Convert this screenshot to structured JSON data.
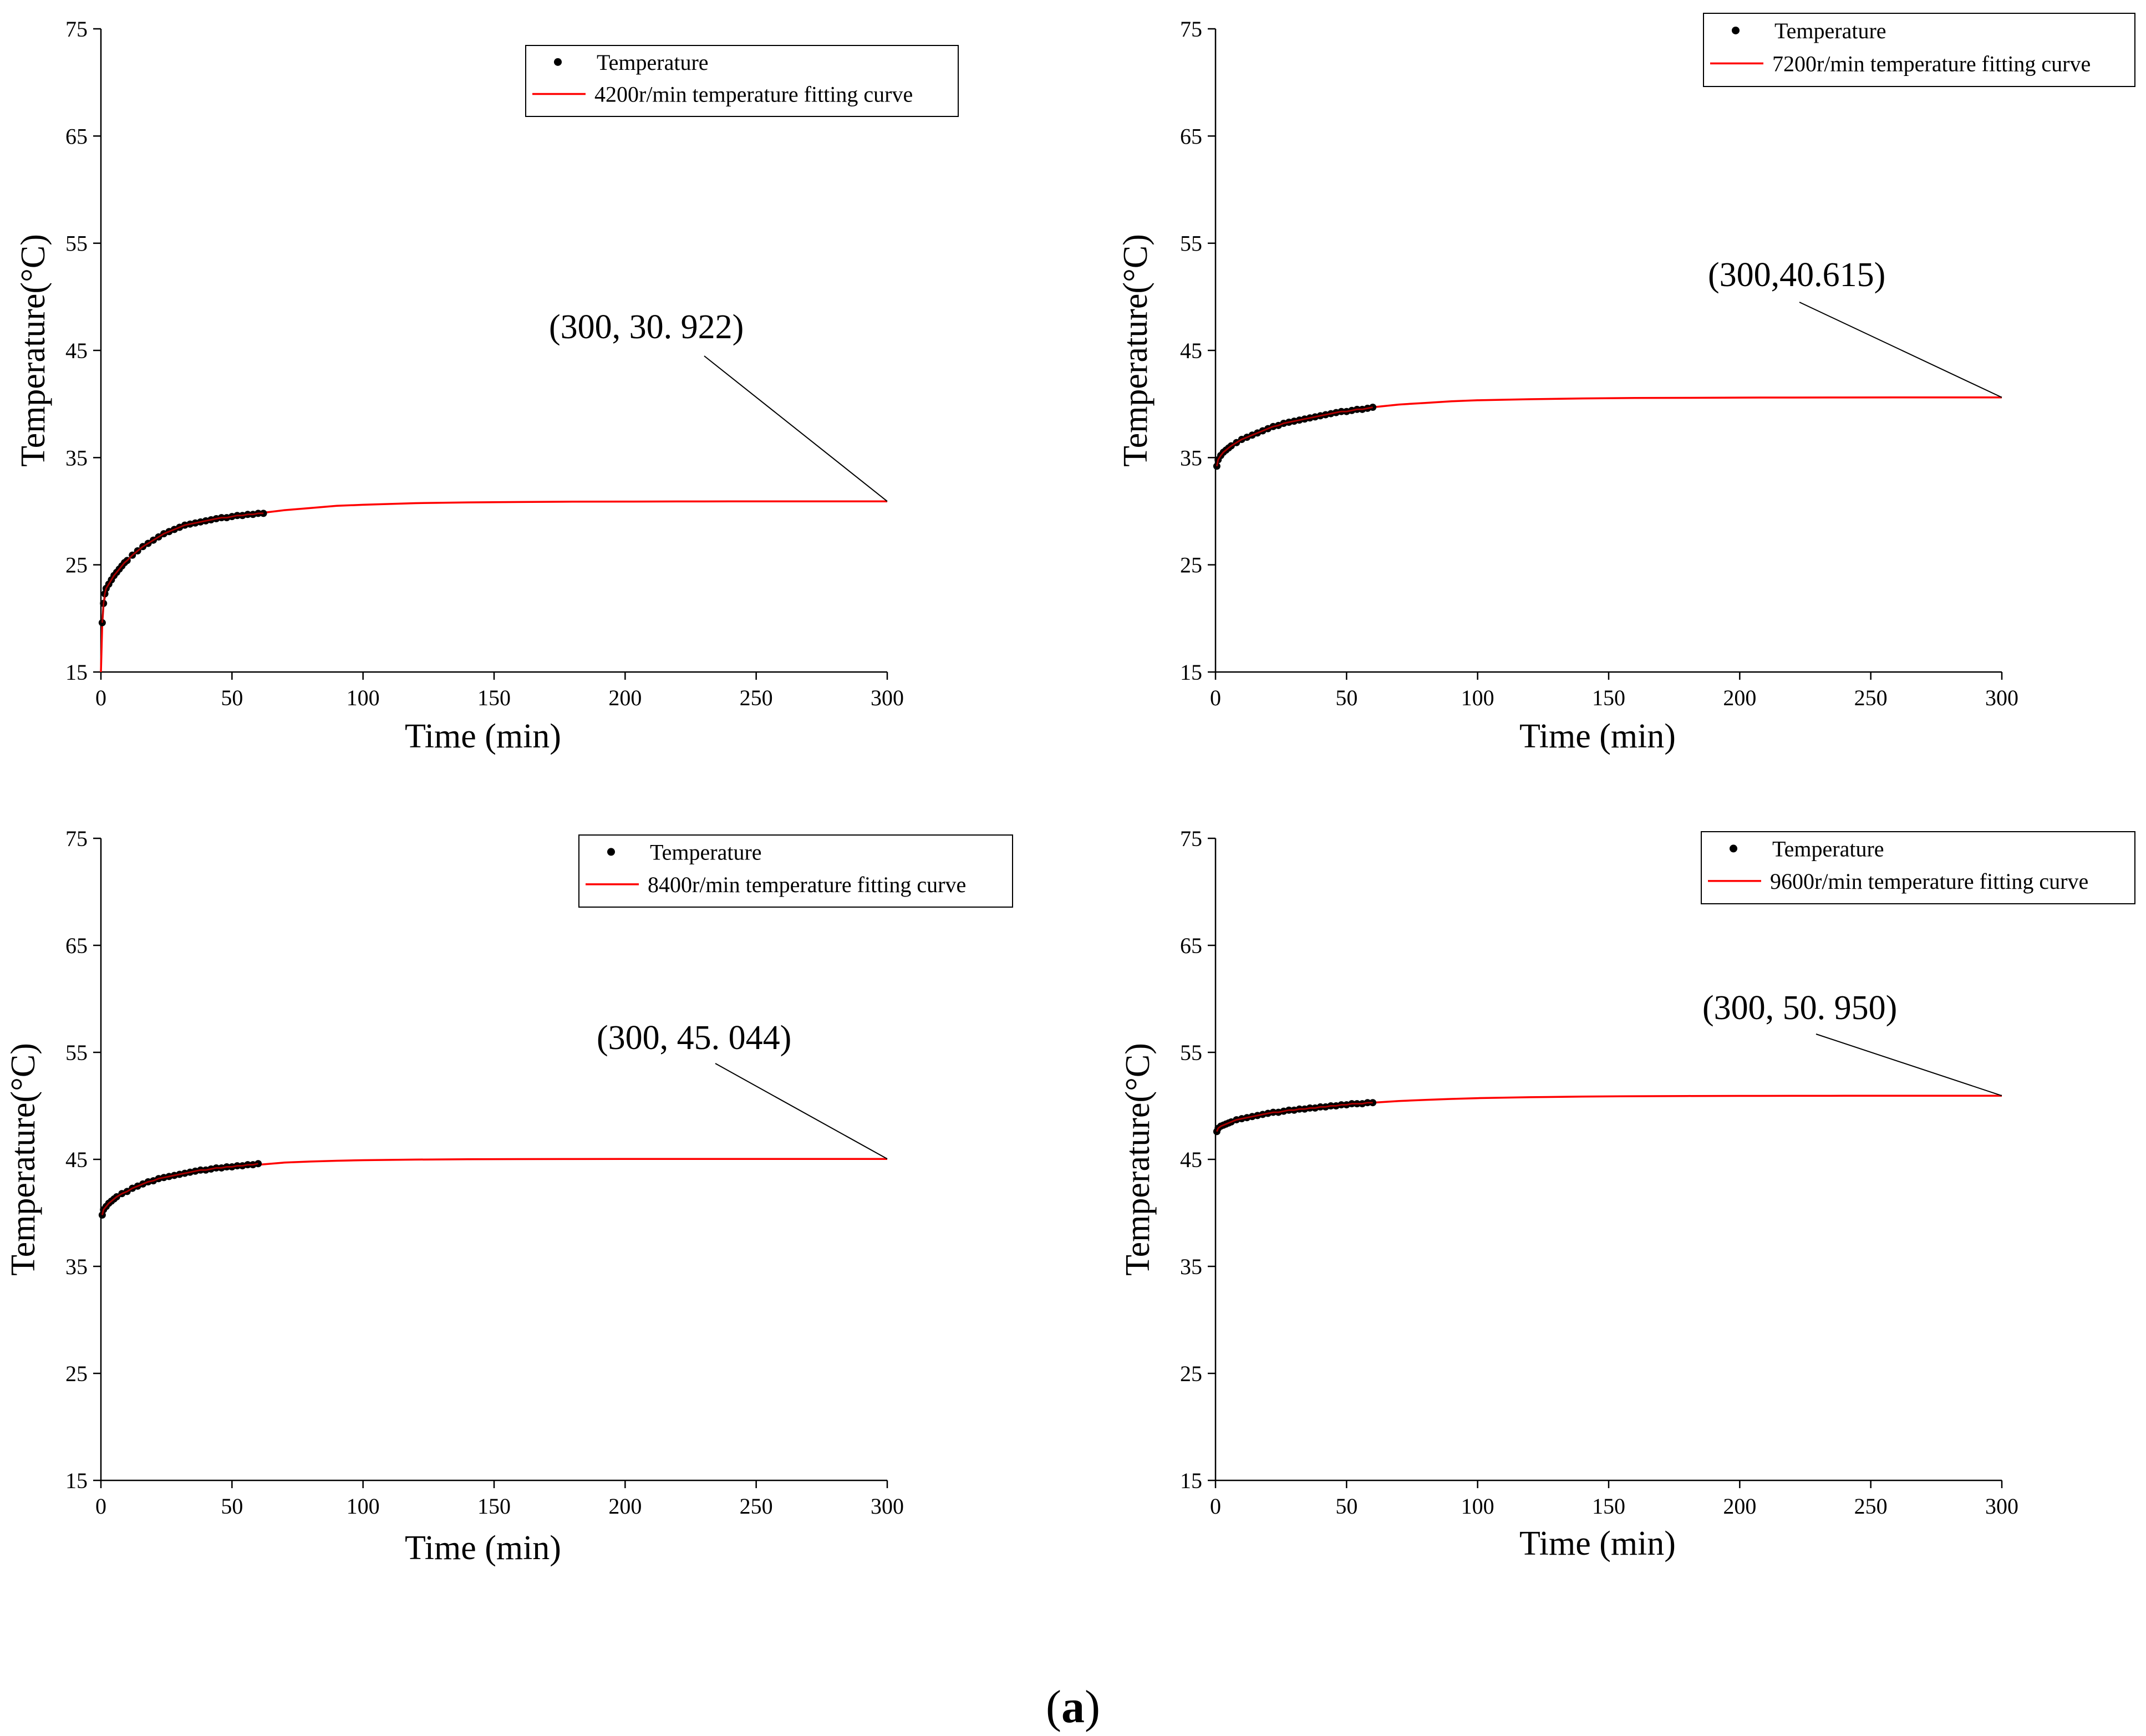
{
  "figure": {
    "panel_label_open": "(",
    "panel_label_letter": "a",
    "panel_label_close": ")"
  },
  "colors": {
    "axis": "#000000",
    "fit_curve": "#ff0000",
    "points": "#000000",
    "point_overlay": "#c00000"
  },
  "chart_data": [
    {
      "type": "line",
      "position": "top-left",
      "xlabel": "Time (min)",
      "ylabel": "Temperature(°C)",
      "xlim": [
        0,
        300
      ],
      "ylim": [
        15,
        75
      ],
      "xticks": [
        0,
        50,
        100,
        150,
        200,
        250,
        300
      ],
      "yticks": [
        15,
        25,
        35,
        45,
        55,
        65,
        75
      ],
      "legend": {
        "placement": "top-right",
        "entries": [
          "Temperature",
          "4200r/min temperature fitting curve"
        ]
      },
      "annotation": {
        "text": "(300, 30. 922)",
        "point": [
          300,
          30.922
        ]
      },
      "series": [
        {
          "name": "Temperature",
          "kind": "scatter",
          "x": [
            0.5,
            1,
            1.5,
            2,
            3,
            4,
            5,
            6,
            7,
            8,
            9,
            10,
            12,
            14,
            16,
            18,
            20,
            22,
            24,
            26,
            28,
            30,
            32,
            34,
            36,
            38,
            40,
            42,
            44,
            46,
            48,
            50,
            52,
            54,
            56,
            58,
            60,
            62
          ],
          "y": [
            19.6,
            21.4,
            22.3,
            22.8,
            23.2,
            23.6,
            24.0,
            24.3,
            24.6,
            24.9,
            25.2,
            25.4,
            25.9,
            26.3,
            26.7,
            27.0,
            27.3,
            27.6,
            27.9,
            28.1,
            28.3,
            28.5,
            28.7,
            28.8,
            28.9,
            29.0,
            29.1,
            29.2,
            29.3,
            29.4,
            29.4,
            29.5,
            29.6,
            29.6,
            29.7,
            29.7,
            29.8,
            29.8
          ]
        },
        {
          "name": "4200r/min temperature fitting curve",
          "kind": "line",
          "x": [
            0,
            0.5,
            1,
            2,
            3,
            5,
            7,
            10,
            15,
            20,
            25,
            30,
            40,
            50,
            60,
            70,
            80,
            90,
            100,
            120,
            140,
            160,
            180,
            200,
            220,
            240,
            260,
            280,
            300
          ],
          "y": [
            15.0,
            19.5,
            21.3,
            22.7,
            23.2,
            24.0,
            24.6,
            25.4,
            26.5,
            27.3,
            27.9,
            28.5,
            29.1,
            29.5,
            29.8,
            30.1,
            30.3,
            30.5,
            30.6,
            30.75,
            30.82,
            30.86,
            30.89,
            30.9,
            30.91,
            30.915,
            30.92,
            30.92,
            30.922
          ]
        }
      ]
    },
    {
      "type": "line",
      "position": "top-right",
      "xlabel": "Time (min)",
      "ylabel": "Temperature(°C)",
      "xlim": [
        0,
        300
      ],
      "ylim": [
        15,
        75
      ],
      "xticks": [
        0,
        50,
        100,
        150,
        200,
        250,
        300
      ],
      "yticks": [
        15,
        25,
        35,
        45,
        55,
        65,
        75
      ],
      "legend": {
        "placement": "top-right",
        "entries": [
          "Temperature",
          "7200r/min temperature fitting curve"
        ]
      },
      "annotation": {
        "text": "(300,40.615)",
        "point": [
          300,
          40.615
        ]
      },
      "series": [
        {
          "name": "Temperature",
          "kind": "scatter",
          "x": [
            0.5,
            1,
            2,
            3,
            4,
            5,
            6,
            8,
            10,
            12,
            14,
            16,
            18,
            20,
            22,
            24,
            26,
            28,
            30,
            32,
            34,
            36,
            38,
            40,
            42,
            44,
            46,
            48,
            50,
            52,
            54,
            56,
            58,
            60
          ],
          "y": [
            34.2,
            34.8,
            35.2,
            35.5,
            35.7,
            35.9,
            36.1,
            36.4,
            36.7,
            36.9,
            37.1,
            37.3,
            37.5,
            37.7,
            37.9,
            38.0,
            38.2,
            38.3,
            38.4,
            38.5,
            38.6,
            38.7,
            38.8,
            38.9,
            39.0,
            39.1,
            39.2,
            39.3,
            39.3,
            39.4,
            39.5,
            39.5,
            39.6,
            39.7
          ]
        },
        {
          "name": "7200r/min temperature fitting curve",
          "kind": "line",
          "x": [
            0,
            0.5,
            1,
            2,
            4,
            6,
            10,
            15,
            20,
            25,
            30,
            40,
            50,
            60,
            70,
            80,
            90,
            100,
            120,
            140,
            160,
            180,
            200,
            220,
            240,
            260,
            280,
            300
          ],
          "y": [
            34.0,
            34.3,
            34.8,
            35.2,
            35.7,
            36.1,
            36.7,
            37.2,
            37.7,
            38.0,
            38.4,
            38.9,
            39.3,
            39.7,
            39.95,
            40.1,
            40.25,
            40.35,
            40.45,
            40.52,
            40.56,
            40.58,
            40.6,
            40.605,
            40.61,
            40.612,
            40.614,
            40.615
          ]
        }
      ]
    },
    {
      "type": "line",
      "position": "bottom-left",
      "xlabel": "Time (min)",
      "ylabel": "Temperature(°C)",
      "xlim": [
        0,
        300
      ],
      "ylim": [
        15,
        75
      ],
      "xticks": [
        0,
        50,
        100,
        150,
        200,
        250,
        300
      ],
      "yticks": [
        15,
        25,
        35,
        45,
        55,
        65,
        75
      ],
      "legend": {
        "placement": "top-right",
        "entries": [
          "Temperature",
          "8400r/min temperature fitting curve"
        ]
      },
      "annotation": {
        "text": "(300, 45. 044)",
        "point": [
          300,
          45.044
        ]
      },
      "series": [
        {
          "name": "Temperature",
          "kind": "scatter",
          "x": [
            0.5,
            1,
            2,
            3,
            4,
            5,
            6,
            8,
            10,
            12,
            14,
            16,
            18,
            20,
            22,
            24,
            26,
            28,
            30,
            32,
            34,
            36,
            38,
            40,
            42,
            44,
            46,
            48,
            50,
            52,
            54,
            56,
            58,
            60
          ],
          "y": [
            39.8,
            40.3,
            40.6,
            40.9,
            41.1,
            41.3,
            41.5,
            41.8,
            42.0,
            42.3,
            42.5,
            42.7,
            42.9,
            43.0,
            43.2,
            43.3,
            43.4,
            43.5,
            43.6,
            43.7,
            43.8,
            43.9,
            44.0,
            44.0,
            44.1,
            44.2,
            44.2,
            44.3,
            44.3,
            44.4,
            44.4,
            44.5,
            44.5,
            44.6
          ]
        },
        {
          "name": "8400r/min temperature fitting curve",
          "kind": "line",
          "x": [
            0,
            0.5,
            1,
            2,
            4,
            6,
            10,
            15,
            20,
            25,
            30,
            40,
            50,
            60,
            70,
            80,
            90,
            100,
            120,
            140,
            160,
            180,
            200,
            220,
            240,
            260,
            280,
            300
          ],
          "y": [
            39.7,
            40.0,
            40.3,
            40.6,
            41.1,
            41.5,
            42.0,
            42.6,
            43.0,
            43.3,
            43.6,
            44.0,
            44.3,
            44.5,
            44.7,
            44.8,
            44.87,
            44.92,
            44.98,
            45.01,
            45.025,
            45.032,
            45.037,
            45.04,
            45.042,
            45.043,
            45.044,
            45.044
          ]
        }
      ]
    },
    {
      "type": "line",
      "position": "bottom-right",
      "xlabel": "Time (min)",
      "ylabel": "Temperature(°C)",
      "xlim": [
        0,
        300
      ],
      "ylim": [
        15,
        75
      ],
      "xticks": [
        0,
        50,
        100,
        150,
        200,
        250,
        300
      ],
      "yticks": [
        15,
        25,
        35,
        45,
        55,
        65,
        75
      ],
      "legend": {
        "placement": "top-right",
        "entries": [
          "Temperature",
          "9600r/min temperature fitting curve"
        ]
      },
      "annotation": {
        "text": "(300, 50. 950)",
        "point": [
          300,
          50.95
        ]
      },
      "series": [
        {
          "name": "Temperature",
          "kind": "scatter",
          "x": [
            0.5,
            1,
            2,
            3,
            4,
            5,
            6,
            8,
            10,
            12,
            14,
            16,
            18,
            20,
            22,
            24,
            26,
            28,
            30,
            32,
            34,
            36,
            38,
            40,
            42,
            44,
            46,
            48,
            50,
            52,
            54,
            56,
            58,
            60
          ],
          "y": [
            47.6,
            47.9,
            48.1,
            48.2,
            48.3,
            48.4,
            48.5,
            48.7,
            48.8,
            48.9,
            49.0,
            49.1,
            49.2,
            49.3,
            49.4,
            49.4,
            49.5,
            49.6,
            49.6,
            49.7,
            49.7,
            49.8,
            49.8,
            49.9,
            49.9,
            50.0,
            50.0,
            50.1,
            50.1,
            50.2,
            50.2,
            50.2,
            50.3,
            50.3
          ]
        },
        {
          "name": "9600r/min temperature fitting curve",
          "kind": "line",
          "x": [
            0,
            0.5,
            1,
            2,
            4,
            6,
            10,
            15,
            20,
            25,
            30,
            40,
            50,
            60,
            70,
            80,
            90,
            100,
            120,
            140,
            160,
            180,
            200,
            220,
            240,
            260,
            280,
            300
          ],
          "y": [
            47.4,
            47.6,
            47.85,
            48.1,
            48.3,
            48.5,
            48.8,
            49.05,
            49.3,
            49.5,
            49.6,
            49.9,
            50.1,
            50.3,
            50.45,
            50.56,
            50.65,
            50.72,
            50.81,
            50.87,
            50.9,
            50.92,
            50.935,
            50.94,
            50.945,
            50.948,
            50.949,
            50.95
          ]
        }
      ]
    }
  ]
}
